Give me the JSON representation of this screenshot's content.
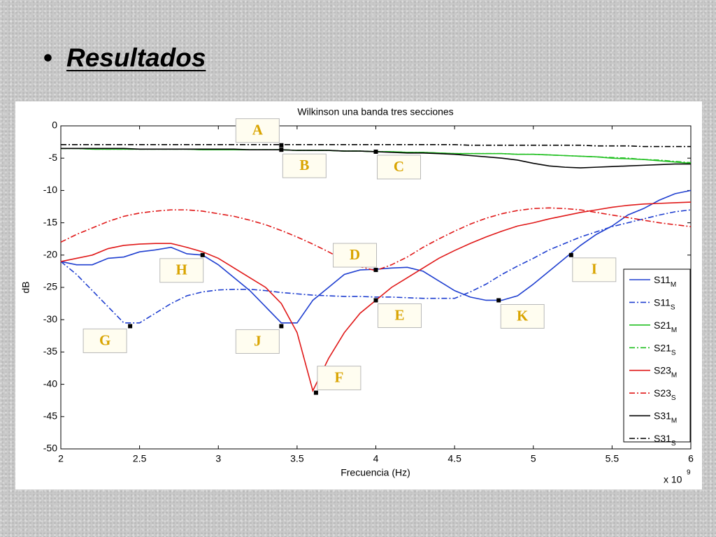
{
  "slide_title": "Resultados",
  "chart_data": {
    "type": "line",
    "title": "Wilkinson una banda tres secciones",
    "xlabel": "Frecuencia (Hz)",
    "ylabel": "dB",
    "x_multiplier": "x 10",
    "x_multiplier_exp": "9",
    "xlim": [
      2,
      6
    ],
    "ylim": [
      -50,
      0
    ],
    "xticks": [
      2,
      2.5,
      3,
      3.5,
      4,
      4.5,
      5,
      5.5,
      6
    ],
    "yticks": [
      0,
      -5,
      -10,
      -15,
      -20,
      -25,
      -30,
      -35,
      -40,
      -45,
      -50
    ],
    "grid": false,
    "legend": "lower right",
    "x": [
      2.0,
      2.1,
      2.2,
      2.3,
      2.4,
      2.5,
      2.6,
      2.7,
      2.8,
      2.9,
      3.0,
      3.1,
      3.2,
      3.3,
      3.4,
      3.5,
      3.6,
      3.7,
      3.8,
      3.9,
      4.0,
      4.1,
      4.2,
      4.3,
      4.4,
      4.5,
      4.6,
      4.7,
      4.8,
      4.9,
      5.0,
      5.1,
      5.2,
      5.3,
      5.4,
      5.5,
      5.6,
      5.7,
      5.8,
      5.9,
      6.0
    ],
    "series": [
      {
        "name": "S11",
        "sub": "M",
        "color": "#1f3fd0",
        "style": "solid",
        "values": [
          -21,
          -21.5,
          -21.5,
          -20.5,
          -20.3,
          -19.5,
          -19.2,
          -18.8,
          -19.8,
          -20,
          -21.5,
          -23.5,
          -25.5,
          -28,
          -30.5,
          -30.5,
          -27,
          -25,
          -23,
          -22.3,
          -22.2,
          -22,
          -21.9,
          -22.5,
          -24,
          -25.5,
          -26.5,
          -27,
          -27,
          -26.3,
          -24.5,
          -22.5,
          -20.5,
          -18.5,
          -16.8,
          -15.5,
          -13.8,
          -12.8,
          -11.5,
          -10.5,
          -10
        ]
      },
      {
        "name": "S11",
        "sub": "S",
        "color": "#1f3fd0",
        "style": "dashdot",
        "values": [
          -21,
          -23,
          -25.5,
          -28,
          -30.5,
          -30.5,
          -29,
          -27.5,
          -26.3,
          -25.7,
          -25.4,
          -25.3,
          -25.3,
          -25.5,
          -25.8,
          -26,
          -26.2,
          -26.3,
          -26.4,
          -26.4,
          -26.5,
          -26.5,
          -26.6,
          -26.7,
          -26.7,
          -26.7,
          -25.7,
          -24.5,
          -23,
          -21.7,
          -20.5,
          -19.2,
          -18.2,
          -17.2,
          -16.4,
          -15.6,
          -15,
          -14.4,
          -13.8,
          -13.3,
          -13
        ]
      },
      {
        "name": "S21",
        "sub": "M",
        "color": "#22c022",
        "style": "solid",
        "values": [
          -3.5,
          -3.5,
          -3.6,
          -3.6,
          -3.6,
          -3.6,
          -3.6,
          -3.6,
          -3.6,
          -3.7,
          -3.7,
          -3.7,
          -3.7,
          -3.7,
          -3.7,
          -3.8,
          -3.8,
          -3.8,
          -3.9,
          -3.9,
          -4.0,
          -4.0,
          -4.1,
          -4.1,
          -4.2,
          -4.3,
          -4.3,
          -4.3,
          -4.3,
          -4.4,
          -4.4,
          -4.5,
          -4.6,
          -4.7,
          -4.8,
          -5.0,
          -5.1,
          -5.2,
          -5.4,
          -5.6,
          -5.8
        ]
      },
      {
        "name": "S21",
        "sub": "S",
        "color": "#22c022",
        "style": "dashdot",
        "values": [
          -3.5,
          -3.5,
          -3.6,
          -3.6,
          -3.6,
          -3.6,
          -3.6,
          -3.6,
          -3.6,
          -3.7,
          -3.7,
          -3.7,
          -3.7,
          -3.7,
          -3.7,
          -3.8,
          -3.8,
          -3.8,
          -3.9,
          -3.9,
          -4.0,
          -4.0,
          -4.1,
          -4.1,
          -4.2,
          -4.3,
          -4.3,
          -4.3,
          -4.3,
          -4.4,
          -4.4,
          -4.5,
          -4.6,
          -4.7,
          -4.8,
          -4.9,
          -5.0,
          -5.2,
          -5.3,
          -5.5,
          -5.7
        ]
      },
      {
        "name": "S23",
        "sub": "M",
        "color": "#e01818",
        "style": "solid",
        "values": [
          -21,
          -20.5,
          -20,
          -19,
          -18.5,
          -18.3,
          -18.2,
          -18.2,
          -18.8,
          -19.5,
          -20.5,
          -22,
          -23.5,
          -25,
          -27.5,
          -32,
          -41,
          -36,
          -32,
          -29,
          -27,
          -25,
          -23.5,
          -22,
          -20.5,
          -19.3,
          -18.2,
          -17.2,
          -16.3,
          -15.5,
          -15,
          -14.4,
          -13.9,
          -13.4,
          -13,
          -12.6,
          -12.3,
          -12.1,
          -12,
          -11.9,
          -11.8
        ]
      },
      {
        "name": "S23",
        "sub": "S",
        "color": "#e01818",
        "style": "dashdot",
        "values": [
          -18,
          -16.8,
          -15.8,
          -14.8,
          -14,
          -13.5,
          -13.2,
          -13,
          -13,
          -13.2,
          -13.6,
          -14,
          -14.6,
          -15.3,
          -16.2,
          -17.2,
          -18.3,
          -19.5,
          -20.8,
          -21.8,
          -22.4,
          -21.5,
          -20.3,
          -18.8,
          -17.5,
          -16.3,
          -15.2,
          -14.3,
          -13.6,
          -13.1,
          -12.8,
          -12.7,
          -12.8,
          -13,
          -13.4,
          -13.8,
          -14.2,
          -14.6,
          -15,
          -15.3,
          -15.6
        ]
      },
      {
        "name": "S31",
        "sub": "M",
        "color": "#000000",
        "style": "solid",
        "values": [
          -3.5,
          -3.5,
          -3.5,
          -3.5,
          -3.5,
          -3.6,
          -3.6,
          -3.6,
          -3.6,
          -3.6,
          -3.6,
          -3.6,
          -3.7,
          -3.7,
          -3.7,
          -3.8,
          -3.8,
          -3.8,
          -3.9,
          -3.9,
          -4.0,
          -4.1,
          -4.2,
          -4.2,
          -4.3,
          -4.4,
          -4.6,
          -4.8,
          -5.0,
          -5.3,
          -5.8,
          -6.2,
          -6.4,
          -6.5,
          -6.4,
          -6.3,
          -6.2,
          -6.1,
          -6.0,
          -5.9,
          -5.9
        ]
      },
      {
        "name": "S31",
        "sub": "S",
        "color": "#000000",
        "style": "dashdot",
        "values": [
          -2.9,
          -2.9,
          -2.9,
          -2.9,
          -2.9,
          -2.9,
          -2.9,
          -2.9,
          -2.9,
          -2.9,
          -2.9,
          -2.9,
          -2.9,
          -2.9,
          -2.9,
          -2.9,
          -2.9,
          -2.9,
          -2.9,
          -2.9,
          -2.9,
          -2.9,
          -2.9,
          -2.9,
          -2.9,
          -2.9,
          -3.0,
          -3.0,
          -3.0,
          -3.0,
          -3.0,
          -3.0,
          -3.0,
          -3.0,
          -3.1,
          -3.1,
          -3.1,
          -3.2,
          -3.2,
          -3.2,
          -3.2
        ]
      }
    ],
    "annotations": [
      {
        "label": "A",
        "x": 3.4,
        "y": -3
      },
      {
        "label": "B",
        "x": 3.4,
        "y": -3.7
      },
      {
        "label": "C",
        "x": 4.0,
        "y": -4
      },
      {
        "label": "D",
        "x": 4.0,
        "y": -22.3
      },
      {
        "label": "E",
        "x": 4.0,
        "y": -27
      },
      {
        "label": "F",
        "x": 3.62,
        "y": -41.3
      },
      {
        "label": "G",
        "x": 2.44,
        "y": -31
      },
      {
        "label": "H",
        "x": 2.9,
        "y": -20
      },
      {
        "label": "I",
        "x": 5.24,
        "y": -20
      },
      {
        "label": "J",
        "x": 3.4,
        "y": -31
      },
      {
        "label": "K",
        "x": 4.78,
        "y": -27
      }
    ]
  }
}
